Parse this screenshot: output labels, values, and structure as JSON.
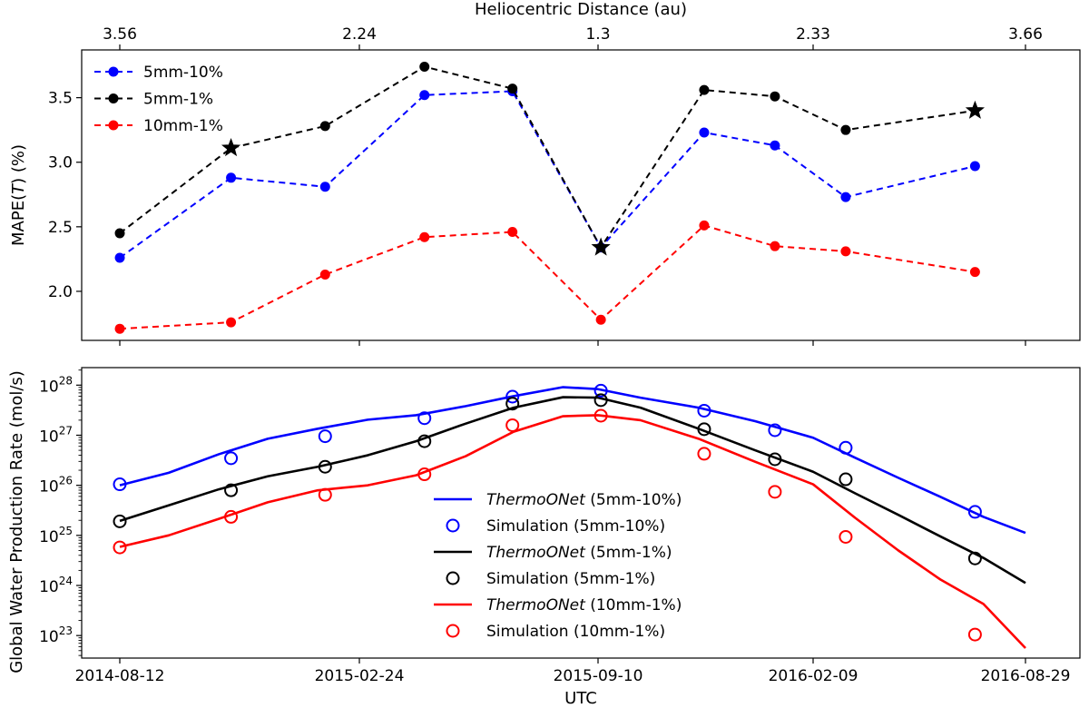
{
  "chart_data": [
    {
      "type": "line",
      "title": "",
      "top_xlabel": "Heliocentric Distance (au)",
      "top_ticks": [
        {
          "date": "2014-08-12",
          "label": "3.56"
        },
        {
          "date": "2015-02-24",
          "label": "2.24"
        },
        {
          "date": "2015-09-10",
          "label": "1.3"
        },
        {
          "date": "2016-02-09",
          "label": "2.33"
        },
        {
          "date": "2016-08-29",
          "label": "3.66"
        }
      ],
      "ylabel_prefix": "MAPE(",
      "ylabel_var": "T",
      "ylabel_suffix": ") (%)",
      "ylim": [
        1.62,
        3.87
      ],
      "yticks": [
        {
          "value": 2.0,
          "label": "2.0"
        },
        {
          "value": 2.5,
          "label": "2.5"
        },
        {
          "value": 3.0,
          "label": "3.0"
        },
        {
          "value": 3.5,
          "label": "3.5"
        }
      ],
      "legend_position": "top-left",
      "x_dates": [
        "2014-08-12",
        "2014-11-11",
        "2015-01-27",
        "2015-04-19",
        "2015-07-01",
        "2015-09-12",
        "2015-11-24",
        "2016-01-13",
        "2016-03-11",
        "2016-07-12"
      ],
      "series": [
        {
          "name": "5mm-10%",
          "color": "#0000ff",
          "values": [
            2.26,
            2.88,
            2.81,
            3.52,
            3.55,
            2.34,
            3.23,
            3.13,
            2.73,
            2.97
          ],
          "markers": [
            "o",
            "o",
            "o",
            "o",
            "o",
            "o",
            "o",
            "o",
            "o",
            "o"
          ]
        },
        {
          "name": "5mm-1%",
          "color": "#000000",
          "values": [
            2.45,
            3.11,
            3.28,
            3.74,
            3.57,
            2.34,
            3.56,
            3.51,
            3.25,
            3.4
          ],
          "markers": [
            "o",
            "*",
            "o",
            "o",
            "o",
            "*",
            "o",
            "o",
            "o",
            "*"
          ]
        },
        {
          "name": "10mm-1%",
          "color": "#ff0000",
          "values": [
            1.71,
            1.76,
            2.13,
            2.42,
            2.46,
            1.78,
            2.51,
            2.35,
            2.31,
            2.15
          ],
          "markers": [
            "o",
            "o",
            "o",
            "o",
            "o",
            "o",
            "o",
            "o",
            "o",
            "o"
          ]
        }
      ]
    },
    {
      "type": "line",
      "title": "",
      "xlabel": "UTC",
      "ylabel": "Global Water Production Rate (mol/s)",
      "yscale": "log",
      "ylim_log10": [
        22.55,
        28.35
      ],
      "xlim": [
        "2014-08-12",
        "2016-08-29"
      ],
      "xticks": [
        "2014-08-12",
        "2015-02-24",
        "2015-09-10",
        "2016-02-09",
        "2016-08-29"
      ],
      "yticks_exp": [
        23,
        24,
        25,
        26,
        27,
        28
      ],
      "y_tick_base": "10",
      "legend_position": "center",
      "model_x_dates": [
        "2014-08-12",
        "2014-09-21",
        "2014-11-01",
        "2014-12-11",
        "2015-01-21",
        "2015-03-03",
        "2015-04-12",
        "2015-05-23",
        "2015-07-02",
        "2015-08-12",
        "2015-09-10",
        "2015-10-10",
        "2015-11-20",
        "2015-12-30",
        "2016-02-09",
        "2016-03-20",
        "2016-04-30",
        "2016-06-09",
        "2016-07-20",
        "2016-08-29"
      ],
      "sim_x_dates": [
        "2014-08-12",
        "2014-11-11",
        "2015-01-27",
        "2015-04-19",
        "2015-07-01",
        "2015-09-12",
        "2015-11-24",
        "2016-01-13",
        "2016-03-11",
        "2016-07-12"
      ],
      "series": [
        {
          "name": "5mm-10%",
          "color": "#0000ff",
          "model_legend_name": "ThermoONet",
          "model_legend_suffix": " (5mm-10%)",
          "sim_legend": "Simulation (5mm-10%)",
          "model_log10": [
            26.0,
            26.25,
            26.62,
            26.93,
            27.13,
            27.31,
            27.4,
            27.58,
            27.78,
            27.96,
            27.92,
            27.75,
            27.55,
            27.28,
            26.95,
            26.55,
            26.15,
            25.77,
            25.37,
            25.05
          ],
          "sim_log10": [
            26.02,
            26.54,
            26.98,
            27.34,
            27.77,
            27.89,
            27.49,
            27.1,
            26.75,
            25.47
          ]
        },
        {
          "name": "5mm-1%",
          "color": "#000000",
          "model_legend_name": "ThermoONet",
          "model_legend_suffix": " (5mm-1%)",
          "sim_legend": "Simulation (5mm-1%)",
          "model_log10": [
            25.29,
            25.6,
            25.92,
            26.18,
            26.37,
            26.6,
            26.88,
            27.23,
            27.55,
            27.76,
            27.75,
            27.55,
            27.13,
            26.7,
            26.27,
            25.84,
            25.41,
            24.98,
            24.55,
            24.05
          ],
          "sim_log10": [
            25.28,
            25.9,
            26.37,
            26.88,
            27.63,
            27.7,
            27.12,
            26.52,
            26.12,
            24.54
          ]
        },
        {
          "name": "10mm-1%",
          "color": "#ff0000",
          "model_legend_name": "ThermoONet",
          "model_legend_suffix": " (10mm-1%)",
          "sim_legend": "Simulation (10mm-1%)",
          "model_log10": [
            24.77,
            25.0,
            25.33,
            25.66,
            25.9,
            26.0,
            26.2,
            26.58,
            27.07,
            27.38,
            27.4,
            27.3,
            26.93,
            26.47,
            26.02,
            25.35,
            24.7,
            24.12,
            23.63,
            22.75
          ],
          "sim_log10": [
            24.76,
            25.37,
            25.81,
            26.22,
            27.2,
            27.39,
            26.63,
            25.87,
            24.97,
            23.02
          ]
        }
      ]
    }
  ]
}
